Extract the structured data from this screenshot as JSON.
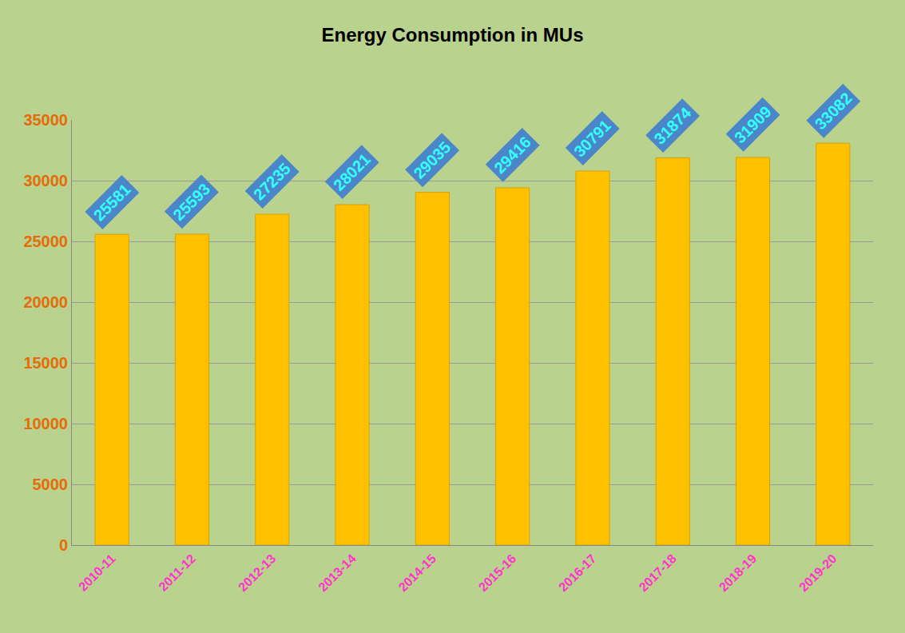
{
  "chart_data": {
    "type": "bar",
    "title": "Energy Consumption in MUs",
    "categories": [
      "2010-11",
      "2011-12",
      "2012-13",
      "2013-14",
      "2014-15",
      "2015-16",
      "2016-17",
      "2017-18",
      "2018-19",
      "2019-20"
    ],
    "values": [
      25581,
      25593,
      27235,
      28021,
      29035,
      29416,
      30791,
      31874,
      31909,
      33082
    ],
    "color": "#ffc000",
    "ylim": [
      0,
      35000
    ],
    "yticks": [
      0,
      5000,
      10000,
      15000,
      20000,
      25000,
      30000,
      35000
    ],
    "grid": true,
    "data_labels": true
  }
}
